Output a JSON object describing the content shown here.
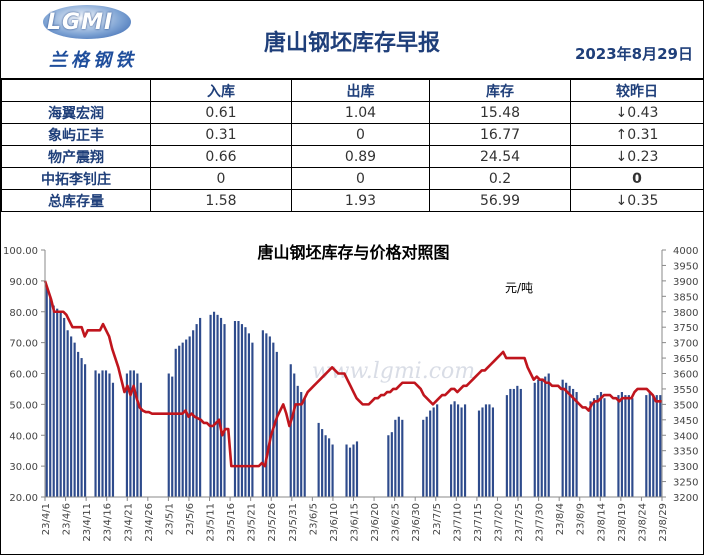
{
  "header": {
    "logo_text": "LGMI",
    "logo_cn": "兰格钢铁",
    "title": "唐山钢坯库存早报",
    "date": "2023年8月29日"
  },
  "table": {
    "columns": [
      "",
      "入库",
      "出库",
      "库存",
      "较昨日"
    ],
    "rows": [
      {
        "name": "海翼宏润",
        "in": "0.61",
        "out": "1.04",
        "stock": "15.48",
        "dir": "down",
        "arrow": "↓",
        "change": "0.43"
      },
      {
        "name": "象屿正丰",
        "in": "0.31",
        "out": "0",
        "stock": "16.77",
        "dir": "up",
        "arrow": "↑",
        "change": "0.31"
      },
      {
        "name": "物产震翔",
        "in": "0.66",
        "out": "0.89",
        "stock": "24.54",
        "dir": "down",
        "arrow": "↓",
        "change": "0.23"
      },
      {
        "name": "中拓李钊庄",
        "in": "0",
        "out": "0",
        "stock": "0.2",
        "dir": "zero",
        "arrow": "",
        "change": "0"
      },
      {
        "name": "总库存量",
        "in": "1.58",
        "out": "1.93",
        "stock": "56.99",
        "dir": "down",
        "arrow": "↓",
        "change": "0.35"
      }
    ]
  },
  "chart_data": {
    "type": "bar",
    "title": "唐山钢坯库存与价格对照图",
    "right_axis_unit": "元/吨",
    "watermark": "www.lgmi.com",
    "ylim_left": [
      20,
      100
    ],
    "ylim_right": [
      3200,
      4000
    ],
    "left_ticks": [
      "20.00",
      "30.00",
      "40.00",
      "50.00",
      "60.00",
      "70.00",
      "80.00",
      "90.00",
      "100.00"
    ],
    "right_ticks": [
      "3200",
      "3250",
      "3300",
      "3350",
      "3400",
      "3450",
      "3500",
      "3550",
      "3600",
      "3650",
      "3700",
      "3750",
      "3800",
      "3850",
      "3900",
      "3950",
      "4000"
    ],
    "x_labels": [
      "23/4/1",
      "23/4/6",
      "23/4/11",
      "23/4/16",
      "23/4/21",
      "23/4/26",
      "23/5/1",
      "23/5/6",
      "23/5/11",
      "23/5/16",
      "23/5/21",
      "23/5/26",
      "23/5/31",
      "23/6/5",
      "23/6/10",
      "23/6/15",
      "23/6/20",
      "23/6/25",
      "23/6/30",
      "23/7/5",
      "23/7/10",
      "23/7/15",
      "23/7/20",
      "23/7/25",
      "23/7/30",
      "23/8/4",
      "23/8/9",
      "23/8/14",
      "23/8/19",
      "23/8/24",
      "23/8/29"
    ],
    "series": [
      {
        "name": "库存",
        "kind": "bar",
        "axis": "left",
        "color": "#2e4b8c",
        "values": [
          88,
          85,
          82,
          81,
          80,
          78,
          74,
          72,
          70,
          67,
          65,
          63,
          null,
          null,
          61,
          60,
          61,
          61,
          60,
          57,
          null,
          null,
          null,
          60,
          61,
          61,
          60,
          57,
          null,
          null,
          null,
          null,
          null,
          null,
          null,
          60,
          59,
          68,
          69,
          70,
          71,
          72,
          74,
          76,
          78,
          null,
          null,
          79,
          80,
          79,
          78,
          76,
          null,
          null,
          77,
          77,
          76,
          75,
          73,
          70,
          null,
          null,
          74,
          73,
          72,
          70,
          67,
          null,
          null,
          null,
          63,
          60,
          56,
          54,
          52,
          null,
          null,
          null,
          44,
          42,
          40,
          39,
          37,
          null,
          null,
          null,
          37,
          36,
          37,
          38,
          null,
          null,
          null,
          null,
          null,
          null,
          null,
          null,
          40,
          41,
          45,
          46,
          45,
          null,
          null,
          null,
          null,
          null,
          45,
          46,
          48,
          49,
          50,
          null,
          null,
          null,
          50,
          51,
          50,
          49,
          50,
          null,
          null,
          null,
          48,
          49,
          50,
          50,
          49,
          null,
          null,
          null,
          53,
          55,
          55,
          56,
          55,
          null,
          null,
          null,
          57,
          58,
          58,
          59,
          60,
          null,
          null,
          null,
          58,
          57,
          56,
          55,
          54,
          null,
          null,
          null,
          51,
          52,
          53,
          54,
          52,
          null,
          null,
          null,
          53,
          54,
          53,
          53,
          52,
          null,
          null,
          null,
          53,
          54,
          53,
          53,
          53
        ]
      },
      {
        "name": "价格",
        "kind": "line",
        "axis": "right",
        "color": "#c0151d",
        "values": [
          3900,
          3870,
          3840,
          3800,
          3800,
          3800,
          3800,
          3790,
          3770,
          3750,
          3750,
          3750,
          3750,
          3720,
          3740,
          3740,
          3740,
          3740,
          3740,
          3760,
          3740,
          3720,
          3680,
          3650,
          3620,
          3580,
          3540,
          3560,
          3530,
          3560,
          3520,
          3490,
          3480,
          3475,
          3475,
          3470,
          3470,
          3470,
          3470,
          3470,
          3470,
          3470,
          3470,
          3470,
          3470,
          3470,
          3480,
          3460,
          3470,
          3460,
          3455,
          3450,
          3440,
          3440,
          3430,
          3430,
          3440,
          3450,
          3400,
          3420,
          3420,
          3300,
          3300,
          3300,
          3300,
          3300,
          3300,
          3300,
          3300,
          3300,
          3300,
          3310,
          3300,
          3350,
          3400,
          3430,
          3460,
          3480,
          3500,
          3470,
          3430,
          3460,
          3500,
          3500,
          3500,
          3520,
          3540,
          3550,
          3560,
          3570,
          3580,
          3590,
          3600,
          3610,
          3620,
          3610,
          3600,
          3600,
          3600,
          3580,
          3560,
          3540,
          3520,
          3510,
          3500,
          3500,
          3500,
          3510,
          3520,
          3520,
          3530,
          3530,
          3540,
          3540,
          3550,
          3550,
          3560,
          3570,
          3570,
          3570,
          3570,
          3570,
          3560,
          3550,
          3530,
          3520,
          3510,
          3500,
          3510,
          3520,
          3530,
          3530,
          3540,
          3550,
          3550,
          3540,
          3550,
          3560,
          3560,
          3570,
          3580,
          3590,
          3600,
          3610,
          3610,
          3620,
          3630,
          3640,
          3650,
          3660,
          3670,
          3650,
          3650,
          3650,
          3650,
          3650,
          3650,
          3650,
          3620,
          3600,
          3580,
          3590,
          3580,
          3580,
          3570,
          3570,
          3560,
          3560,
          3560,
          3550,
          3550,
          3540,
          3530,
          3520,
          3510,
          3500,
          3490,
          3490,
          3480,
          3500,
          3510,
          3510,
          3520,
          3530,
          3530,
          3530,
          3520,
          3520,
          3510,
          3520,
          3520,
          3520,
          3520,
          3540,
          3550,
          3550,
          3550,
          3550,
          3540,
          3530,
          3510,
          3510,
          3510
        ]
      }
    ]
  }
}
